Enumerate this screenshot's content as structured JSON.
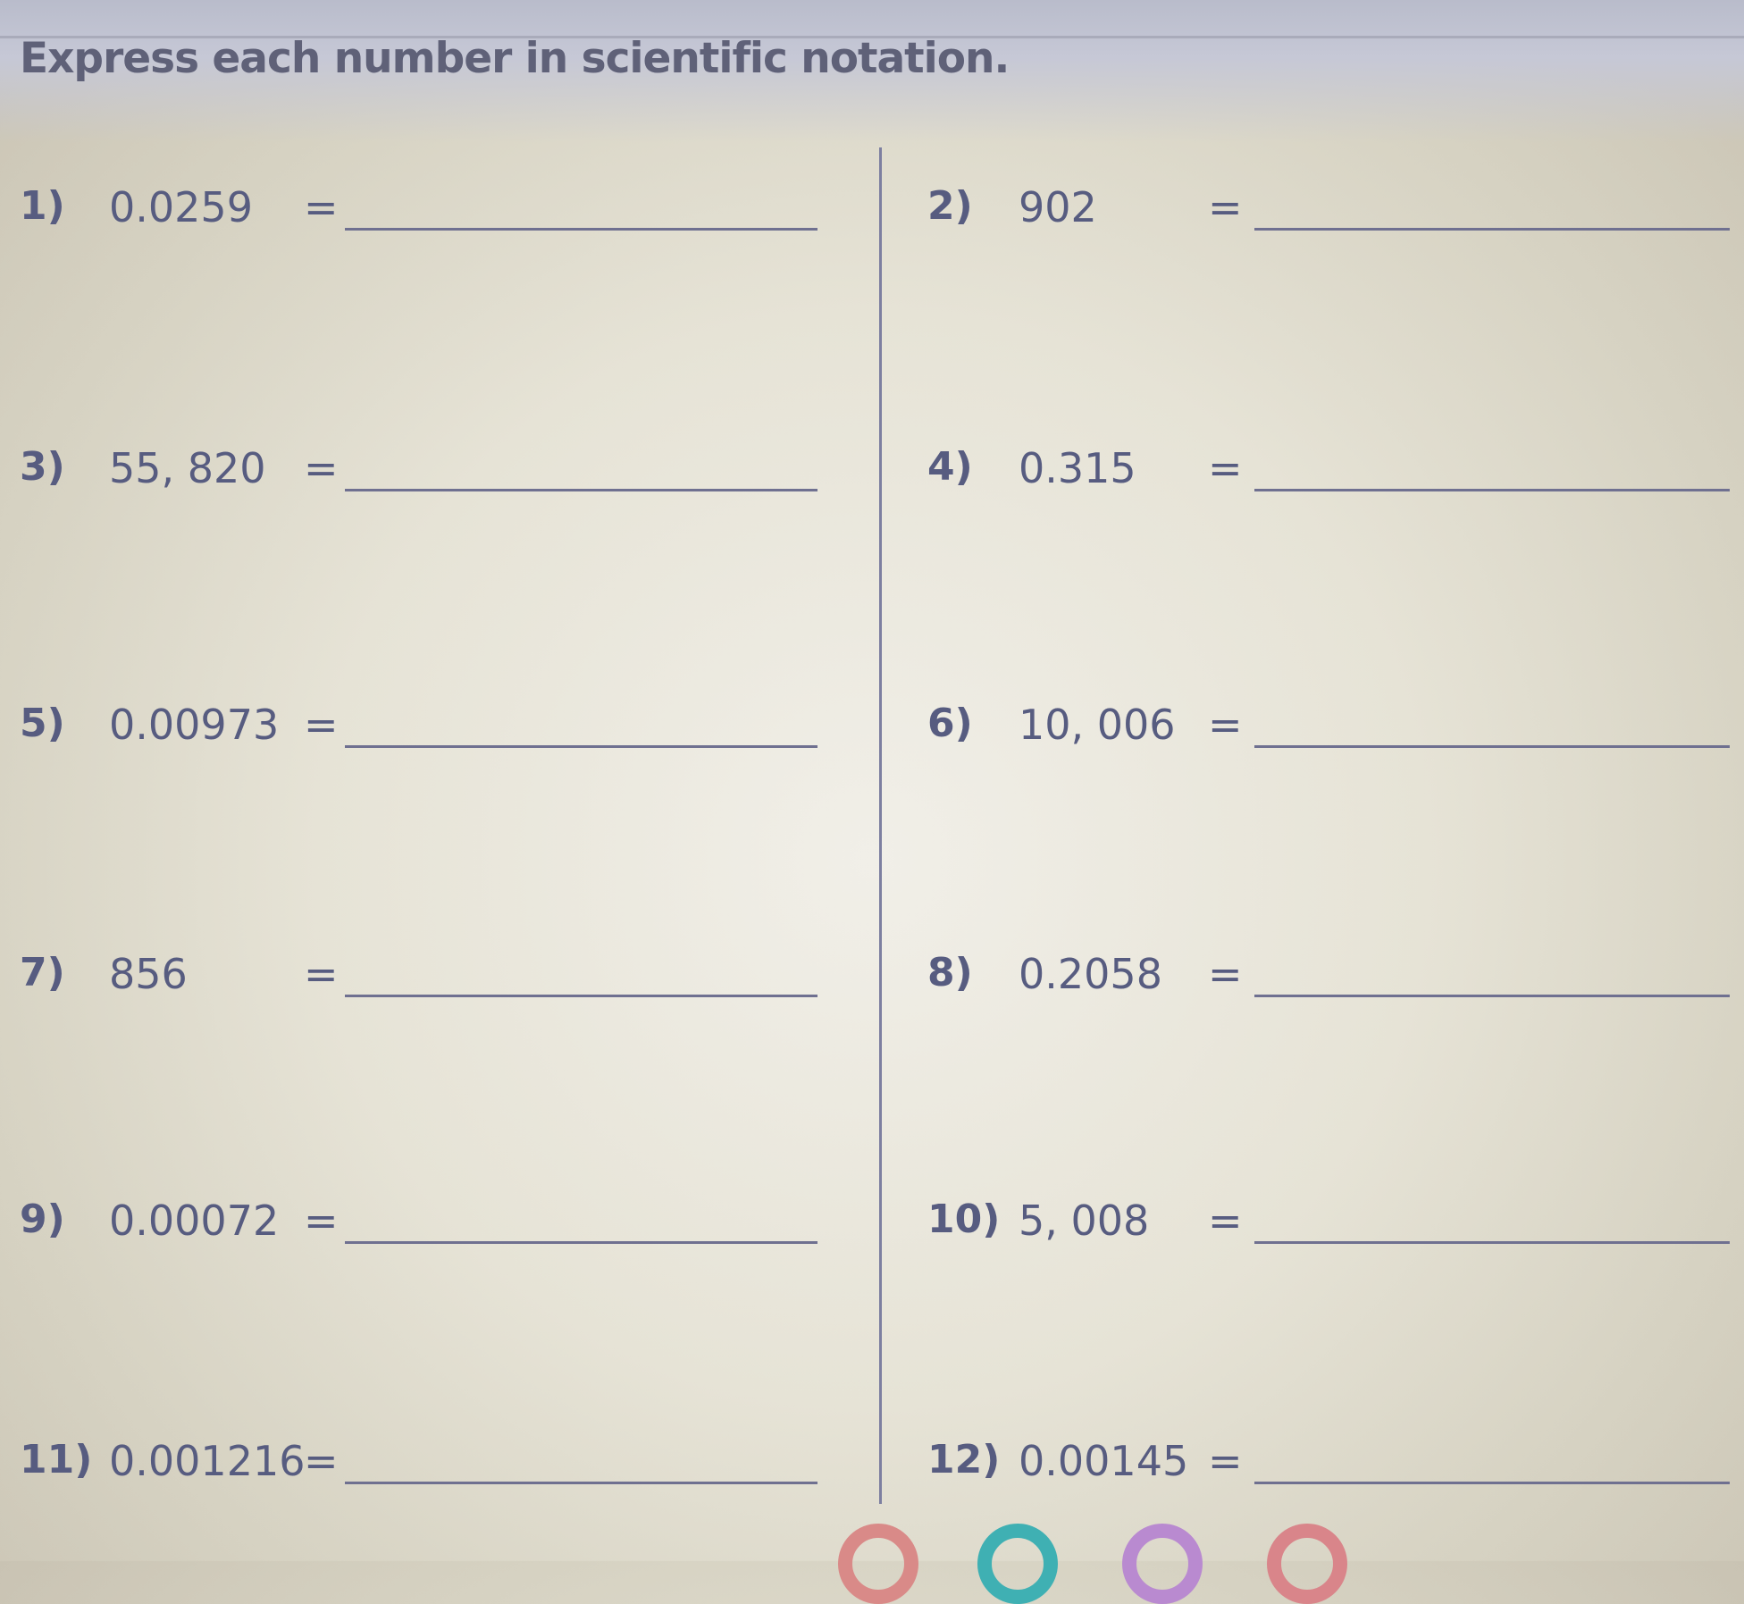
{
  "instructions": "Express each number in scientific notation.",
  "problems": [
    {
      "label": "1)",
      "value": "0.0259",
      "equals": "="
    },
    {
      "label": "2)",
      "value": "902",
      "equals": "="
    },
    {
      "label": "3)",
      "value": "55, 820",
      "equals": "="
    },
    {
      "label": "4)",
      "value": "0.315",
      "equals": "="
    },
    {
      "label": "5)",
      "value": "0.00973",
      "equals": "="
    },
    {
      "label": "6)",
      "value": "10, 006",
      "equals": "="
    },
    {
      "label": "7)",
      "value": "856",
      "equals": "="
    },
    {
      "label": "8)",
      "value": "0.2058",
      "equals": "="
    },
    {
      "label": "9)",
      "value": "0.00072",
      "equals": "="
    },
    {
      "label": "10)",
      "value": "5, 008",
      "equals": "="
    },
    {
      "label": "11)",
      "value": "0.001216",
      "equals": "="
    },
    {
      "label": "12)",
      "value": "0.00145",
      "equals": "="
    }
  ],
  "dock_icons": [
    {
      "name": "chrome-icon",
      "color": "#d98a88"
    },
    {
      "name": "teal-app-icon",
      "color": "#3fb0b3"
    },
    {
      "name": "purple-app-icon",
      "color": "#b98ad0"
    },
    {
      "name": "red-app-icon",
      "color": "#d9858a"
    }
  ]
}
